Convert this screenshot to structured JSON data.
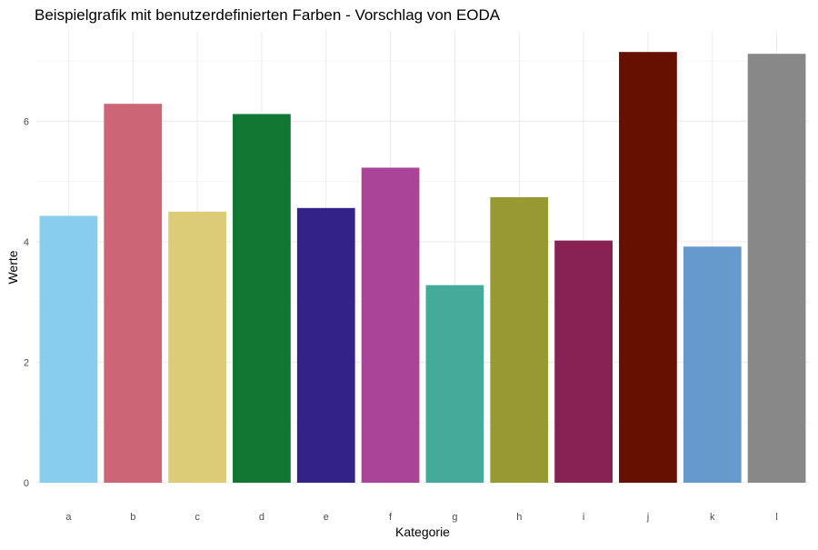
{
  "chart_data": {
    "type": "bar",
    "title": "Beispielgrafik mit benutzerdefinierten Farben - Vorschlag von EODA",
    "xlabel": "Kategorie",
    "ylabel": "Werte",
    "categories": [
      "a",
      "b",
      "c",
      "d",
      "e",
      "f",
      "g",
      "h",
      "i",
      "j",
      "k",
      "l"
    ],
    "values": [
      4.43,
      6.29,
      4.5,
      6.12,
      4.56,
      5.23,
      3.28,
      4.74,
      4.02,
      7.15,
      3.92,
      7.12
    ],
    "colors": [
      "#88CCEE",
      "#CC6677",
      "#DDCC77",
      "#117733",
      "#332288",
      "#AA4499",
      "#44AA99",
      "#999933",
      "#882255",
      "#661100",
      "#6699CC",
      "#888888"
    ],
    "ylim": [
      0,
      7.5
    ],
    "y_ticks": [
      "0",
      "2",
      "4",
      "6"
    ],
    "grid": true,
    "legend": "none"
  }
}
